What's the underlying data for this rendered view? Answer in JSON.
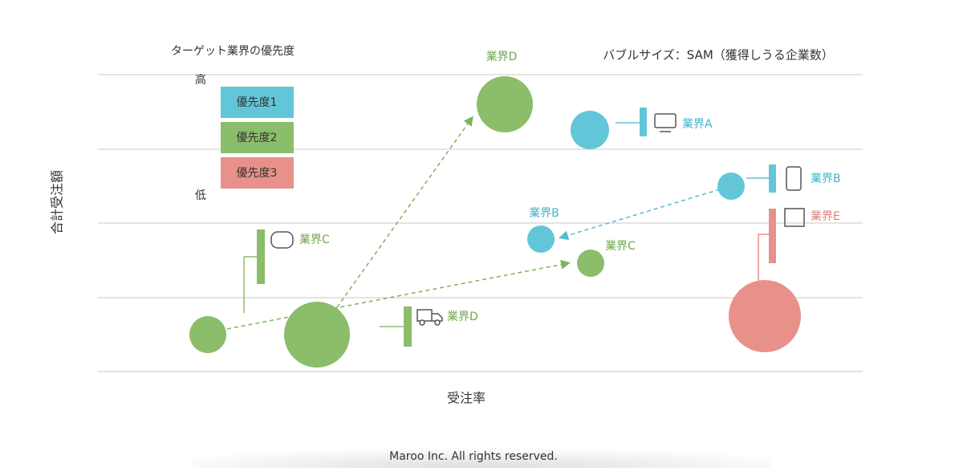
{
  "legend": {
    "title": "ターゲット業界の優先度",
    "high": "高",
    "low": "低",
    "items": [
      "優先度1",
      "優先度2",
      "優先度3"
    ]
  },
  "bubble_note": "バブルサイズ：SAM（獲得しうる企業数）",
  "axes": {
    "y_label": "合計受注額",
    "x_label": "受注率"
  },
  "labels": {
    "top_d": "業界D",
    "a": "業界A",
    "right_b": "業界B",
    "e": "業界E",
    "mid_b": "業界B",
    "mid_c": "業界C",
    "left_c": "業界C",
    "low_d": "業界D"
  },
  "footer": "Maroo Inc. All rights reserved."
}
